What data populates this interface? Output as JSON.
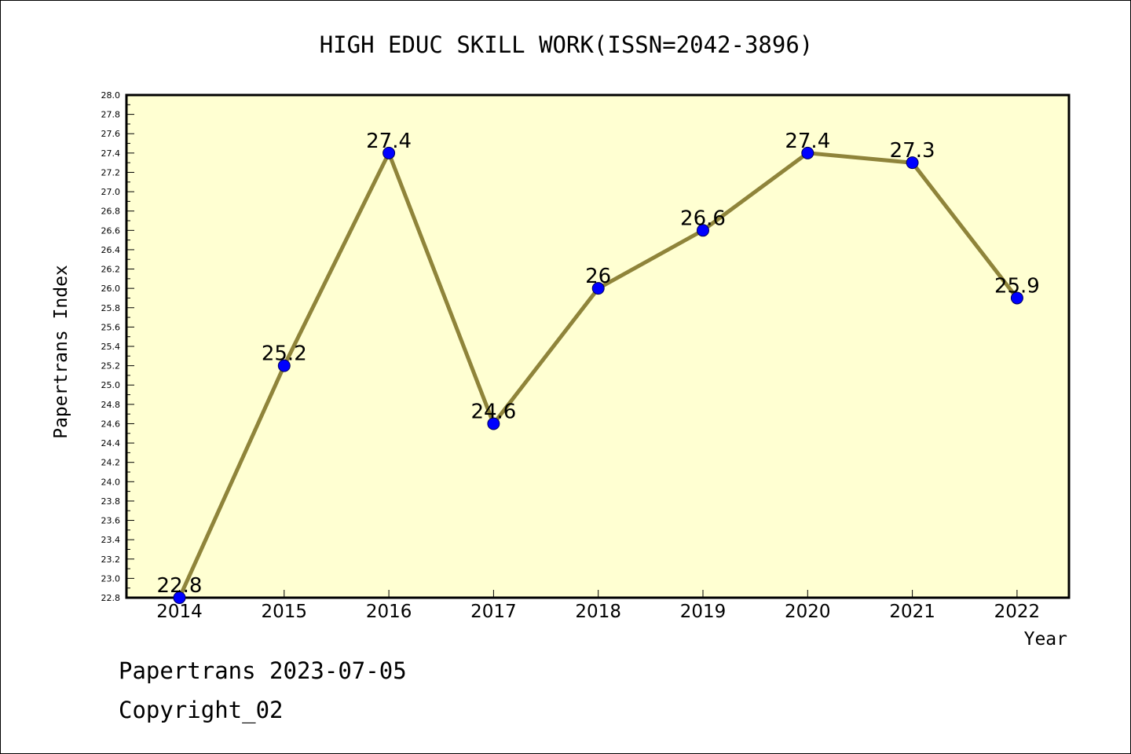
{
  "chart_data": {
    "type": "line",
    "title": "HIGH EDUC SKILL WORK(ISSN=2042-3896)",
    "xlabel": "Year",
    "ylabel": "Papertrans Index",
    "categories": [
      "2014",
      "2015",
      "2016",
      "2017",
      "2018",
      "2019",
      "2020",
      "2021",
      "2022"
    ],
    "series": [
      {
        "values": [
          22.8,
          25.2,
          27.4,
          24.6,
          26.0,
          26.6,
          27.4,
          27.3,
          25.9
        ],
        "data_labels": [
          "22.8",
          "25.2",
          "27.4",
          "24.6",
          "26",
          "26.6",
          "27.4",
          "27.3",
          "25.9"
        ]
      }
    ],
    "ylim": [
      22.8,
      28.0
    ],
    "yticks": [
      "22.8",
      "23.0",
      "23.2",
      "23.4",
      "23.6",
      "23.8",
      "24.0",
      "24.2",
      "24.4",
      "24.6",
      "24.8",
      "25.0",
      "25.2",
      "25.4",
      "25.6",
      "25.8",
      "26.0",
      "26.2",
      "26.4",
      "26.6",
      "26.8",
      "27.0",
      "27.2",
      "27.4",
      "27.6",
      "27.8",
      "28.0"
    ],
    "grid": false,
    "legend": "none",
    "colors": {
      "plot_background": "#ffffd2",
      "line": "#8f843a",
      "marker": "#0000ff"
    }
  },
  "footer": {
    "line1": "Papertrans 2023-07-05",
    "line2": "Copyright_02"
  }
}
